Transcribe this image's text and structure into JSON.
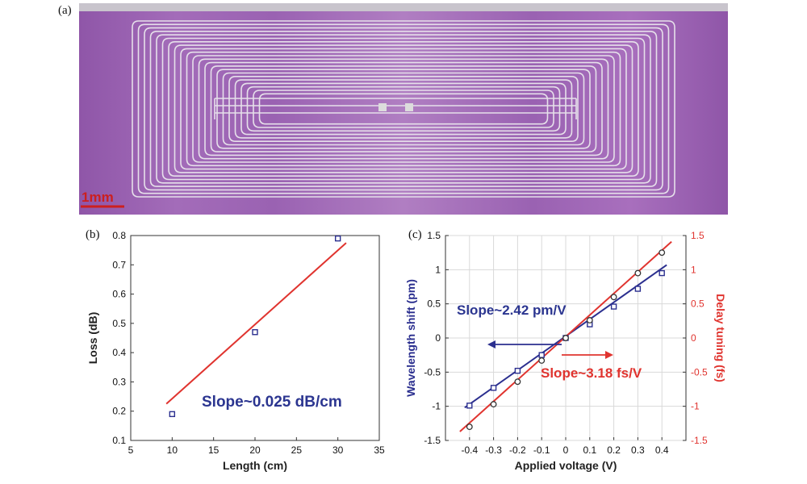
{
  "figure": {
    "panel_a": {
      "letter": "(a)",
      "scale_bar_label": "1mm",
      "scale_bar_color": "#cc1f1f",
      "chip_color": "#9b5fb3"
    },
    "panel_b": {
      "letter": "(b)"
    },
    "panel_c": {
      "letter": "(c)"
    }
  },
  "chart_data": [
    {
      "type": "scatter",
      "title": "",
      "xlabel": "Length (cm)",
      "ylabel": "Loss (dB)",
      "xlim": [
        5,
        35
      ],
      "ylim": [
        0.1,
        0.8
      ],
      "xticks": [
        "5",
        "10",
        "15",
        "20",
        "25",
        "30",
        "35"
      ],
      "yticks": [
        "0.1",
        "0.2",
        "0.3",
        "0.4",
        "0.5",
        "0.6",
        "0.7",
        "0.8"
      ],
      "grid": false,
      "series": [
        {
          "kind": "points",
          "marker": "square",
          "color": "#2b2f8f",
          "x": [
            10,
            20,
            30
          ],
          "y": [
            0.19,
            0.47,
            0.79
          ]
        },
        {
          "kind": "fit",
          "color": "#e0342f",
          "x": [
            9.3,
            31
          ],
          "y": [
            0.225,
            0.775
          ]
        }
      ],
      "annotation": "Slope~0.025  dB/cm",
      "annotation_color": "#2b3590"
    },
    {
      "type": "scatter",
      "title": "",
      "xlabel": "Applied voltage (V)",
      "ylabel": "Wavelength shift (pm)",
      "ylabel_right": "Delay tuning (fs)",
      "xlim": [
        -0.5,
        0.5
      ],
      "ylim": [
        -1.5,
        1.5
      ],
      "ylim_right": [
        -1.5,
        1.5
      ],
      "xticks": [
        "-0.4",
        "-0.3",
        "-0.2",
        "-0.1",
        "0",
        "0.1",
        "0.2",
        "0.3",
        "0.4"
      ],
      "yticks": [
        "-1.5",
        "-1",
        "-0.5",
        "0",
        "0.5",
        "1",
        "1.5"
      ],
      "yticks_right": [
        "-1.5",
        "-1",
        "-0.5",
        "0",
        "0.5",
        "1",
        "1.5"
      ],
      "grid": true,
      "series": [
        {
          "kind": "points",
          "marker": "square",
          "color": "#2b2f8f",
          "axis": "left",
          "x": [
            -0.4,
            -0.3,
            -0.2,
            -0.1,
            0,
            0.1,
            0.2,
            0.3,
            0.4
          ],
          "y": [
            -0.99,
            -0.73,
            -0.48,
            -0.25,
            0,
            0.2,
            0.46,
            0.72,
            0.95
          ]
        },
        {
          "kind": "fit",
          "color": "#2b2f8f",
          "axis": "left",
          "x": [
            -0.42,
            0.42
          ],
          "y": [
            -1.02,
            1.07
          ]
        },
        {
          "kind": "points",
          "marker": "circle",
          "color": "#e0342f",
          "axis": "right",
          "x": [
            -0.4,
            -0.3,
            -0.2,
            -0.1,
            0,
            0.1,
            0.2,
            0.3,
            0.4
          ],
          "y": [
            -1.3,
            -0.97,
            -0.64,
            -0.33,
            0,
            0.26,
            0.6,
            0.95,
            1.25
          ]
        },
        {
          "kind": "fit",
          "color": "#e0342f",
          "axis": "right",
          "x": [
            -0.44,
            0.44
          ],
          "y": [
            -1.37,
            1.41
          ]
        }
      ],
      "annotations": [
        {
          "text": "Slope~2.42 pm/V",
          "color": "#2b3590"
        },
        {
          "text": "Slope~3.18 fs/V",
          "color": "#e0342f"
        }
      ]
    }
  ]
}
